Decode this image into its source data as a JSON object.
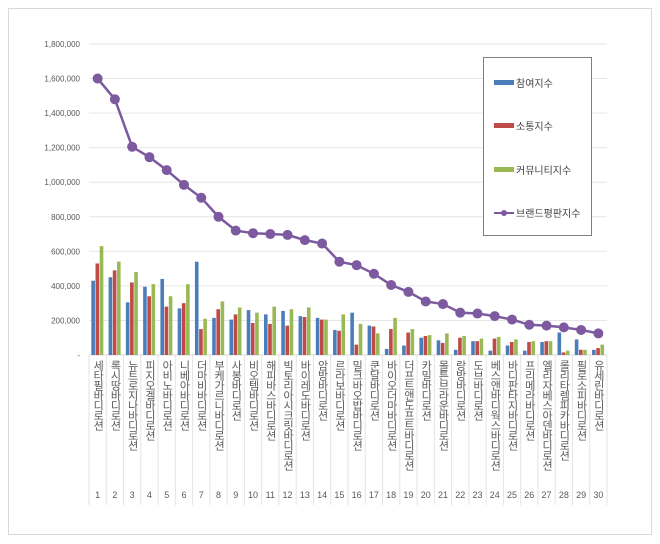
{
  "chart_data": {
    "type": "bar",
    "categories": [
      "세타필바디로션",
      "록시땅바디로션",
      "뉴트로지나바디로션",
      "피지오겔바디로션",
      "아비노바디로션",
      "니베아바디로션",
      "더마비바디로션",
      "부케가르니바디로션",
      "사봉바디로션",
      "비오템바디로션",
      "해피바스바디로션",
      "빅토리아시크릿바디로션",
      "바이레도바디로션",
      "암방바디로션",
      "르라보바디로션",
      "밀크바오밥바디로션",
      "쿤달바디로션",
      "바이오더마바디로션",
      "더프트앤도프트바디로션",
      "카밀바디로션",
      "몰튼브라운바디로션",
      "랑방바디로션",
      "도브바디로션",
      "베스앤바디웍스바디로션",
      "바디판타지바디로션",
      "프리메라바디로션",
      "엘리자베스아덴바디로션",
      "롤리타렘피카바디로션",
      "필로소피바디로션",
      "유세린바디로션"
    ],
    "ranks": [
      "1",
      "2",
      "3",
      "4",
      "5",
      "6",
      "7",
      "8",
      "9",
      "10",
      "11",
      "12",
      "13",
      "14",
      "15",
      "16",
      "17",
      "18",
      "19",
      "20",
      "21",
      "22",
      "23",
      "24",
      "25",
      "26",
      "27",
      "28",
      "29",
      "30"
    ],
    "series": [
      {
        "name": "참여지수",
        "kind": "bar",
        "color": "#4a7ebb",
        "values": [
          430000,
          450000,
          305000,
          395000,
          440000,
          270000,
          540000,
          215000,
          205000,
          260000,
          235000,
          255000,
          225000,
          215000,
          145000,
          245000,
          170000,
          35000,
          55000,
          100000,
          85000,
          30000,
          80000,
          25000,
          55000,
          25000,
          75000,
          130000,
          90000,
          30000
        ]
      },
      {
        "name": "소통지수",
        "kind": "bar",
        "color": "#be4b48",
        "values": [
          530000,
          490000,
          420000,
          340000,
          280000,
          300000,
          150000,
          265000,
          235000,
          185000,
          180000,
          170000,
          220000,
          205000,
          140000,
          60000,
          165000,
          150000,
          130000,
          110000,
          70000,
          100000,
          80000,
          95000,
          75000,
          75000,
          80000,
          15000,
          30000,
          40000
        ]
      },
      {
        "name": "커뮤니티지수",
        "kind": "bar",
        "color": "#98b954",
        "values": [
          630000,
          540000,
          480000,
          410000,
          340000,
          410000,
          210000,
          310000,
          275000,
          245000,
          280000,
          265000,
          275000,
          205000,
          235000,
          180000,
          125000,
          215000,
          150000,
          115000,
          125000,
          110000,
          95000,
          105000,
          90000,
          80000,
          80000,
          25000,
          30000,
          60000
        ]
      },
      {
        "name": "브랜드평판지수",
        "kind": "line",
        "color": "#7d5aa0",
        "values": [
          1600000,
          1480000,
          1205000,
          1145000,
          1070000,
          985000,
          910000,
          800000,
          720000,
          705000,
          700000,
          695000,
          665000,
          645000,
          540000,
          520000,
          470000,
          405000,
          365000,
          310000,
          295000,
          245000,
          240000,
          225000,
          205000,
          175000,
          170000,
          160000,
          145000,
          125000
        ]
      }
    ],
    "yticks": [
      "-",
      "200,000",
      "400,000",
      "600,000",
      "800,000",
      "1,000,000",
      "1,200,000",
      "1,400,000",
      "1,600,000",
      "1,800,000"
    ],
    "ylim": [
      0,
      1800000
    ],
    "grid": true,
    "legend": "right"
  }
}
